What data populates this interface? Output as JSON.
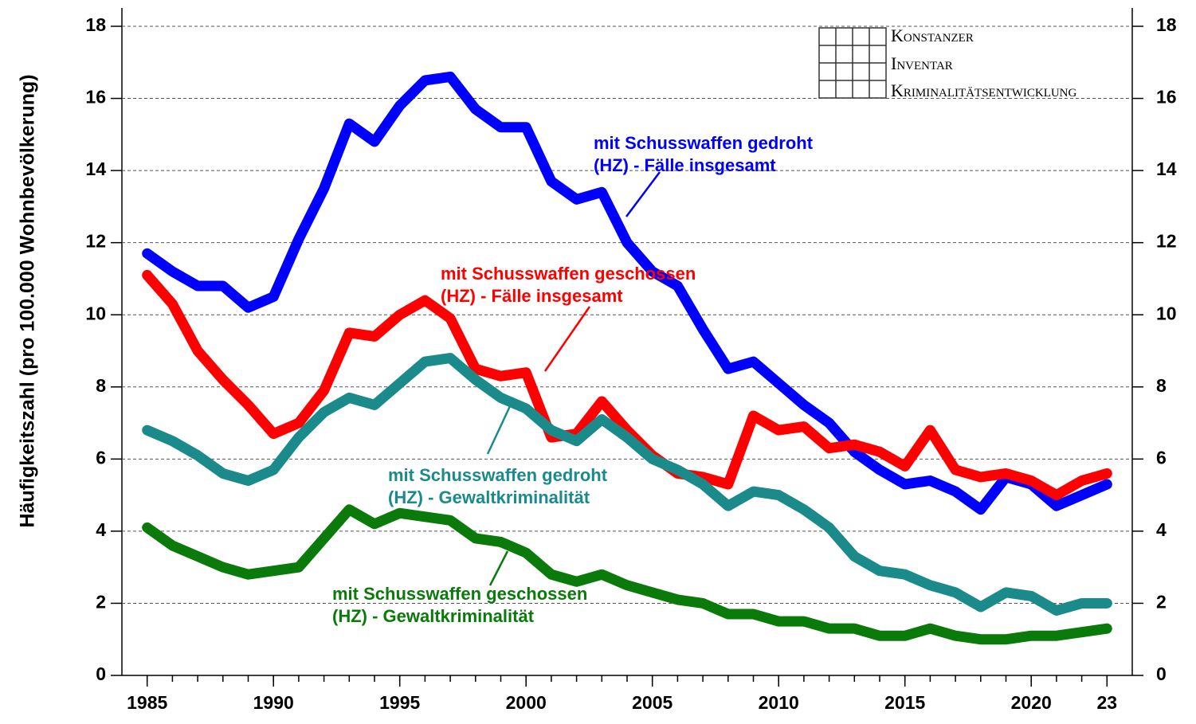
{
  "chart_data": {
    "type": "line",
    "y_label": "Häufigkeitszahl (pro 100.000 Wohnbevölkerung)",
    "logo": [
      "Konstanzer",
      "Inventar",
      "Kriminalitätsentwicklung"
    ],
    "x": [
      1985,
      1986,
      1987,
      1988,
      1989,
      1990,
      1991,
      1992,
      1993,
      1994,
      1995,
      1996,
      1997,
      1998,
      1999,
      2000,
      2001,
      2002,
      2003,
      2004,
      2005,
      2006,
      2007,
      2008,
      2009,
      2010,
      2011,
      2012,
      2013,
      2014,
      2015,
      2016,
      2017,
      2018,
      2019,
      2020,
      2021,
      2022,
      2023
    ],
    "xlim": [
      1984,
      2024
    ],
    "xticks": [
      1985,
      1990,
      1995,
      2000,
      2005,
      2010,
      2015,
      2020,
      {
        "value": 2023,
        "label": "23"
      }
    ],
    "ylim": [
      0,
      18
    ],
    "yticks": [
      0,
      2,
      4,
      6,
      8,
      10,
      12,
      14,
      16,
      18
    ],
    "y2lim": [
      0,
      18
    ],
    "y2ticks": [
      0,
      2,
      4,
      6,
      8,
      10,
      12,
      14,
      16,
      18
    ],
    "grid": true,
    "series": [
      {
        "label_lines": [
          "mit Schusswaffen gedroht",
          "(HZ) - Fälle insgesamt"
        ],
        "color": "#0000ff",
        "values": [
          11.7,
          11.2,
          10.8,
          10.8,
          10.2,
          10.5,
          12.1,
          13.5,
          15.3,
          14.8,
          15.8,
          16.5,
          16.6,
          15.7,
          15.2,
          15.2,
          13.7,
          13.2,
          13.4,
          12.0,
          11.2,
          10.8,
          9.6,
          8.5,
          8.7,
          8.1,
          7.5,
          7.0,
          6.2,
          5.7,
          5.3,
          5.4,
          5.1,
          4.6,
          5.5,
          5.3,
          4.7,
          5.0,
          5.3
        ]
      },
      {
        "label_lines": [
          "mit Schusswaffen geschossen",
          "(HZ) - Fälle insgesamt"
        ],
        "color": "#ff0000",
        "values": [
          11.1,
          10.3,
          9.0,
          8.2,
          7.5,
          6.7,
          7.0,
          7.9,
          9.5,
          9.4,
          10.0,
          10.4,
          9.9,
          8.5,
          8.3,
          8.4,
          6.6,
          6.7,
          7.6,
          6.8,
          6.1,
          5.6,
          5.5,
          5.3,
          7.2,
          6.8,
          6.9,
          6.3,
          6.4,
          6.2,
          5.8,
          6.8,
          5.7,
          5.5,
          5.6,
          5.4,
          5.0,
          5.4,
          5.6
        ]
      },
      {
        "label_lines": [
          "mit Schusswaffen gedroht",
          "(HZ) - Gewaltkriminalität"
        ],
        "color": "#1a8a8a",
        "values": [
          6.8,
          6.5,
          6.1,
          5.6,
          5.4,
          5.7,
          6.6,
          7.3,
          7.7,
          7.5,
          8.1,
          8.7,
          8.8,
          8.2,
          7.7,
          7.4,
          6.8,
          6.5,
          7.1,
          6.6,
          6.0,
          5.7,
          5.3,
          4.7,
          5.1,
          5.0,
          4.6,
          4.1,
          3.3,
          2.9,
          2.8,
          2.5,
          2.3,
          1.9,
          2.3,
          2.2,
          1.8,
          2.0,
          2.0
        ]
      },
      {
        "label_lines": [
          "mit Schusswaffen geschossen",
          "(HZ) - Gewaltkriminalität"
        ],
        "color": "#0a7a0a",
        "values": [
          4.1,
          3.6,
          3.3,
          3.0,
          2.8,
          2.9,
          3.0,
          3.8,
          4.6,
          4.2,
          4.5,
          4.4,
          4.3,
          3.8,
          3.7,
          3.4,
          2.8,
          2.6,
          2.8,
          2.5,
          2.3,
          2.1,
          2.0,
          1.7,
          1.7,
          1.5,
          1.5,
          1.3,
          1.3,
          1.1,
          1.1,
          1.3,
          1.1,
          1.0,
          1.0,
          1.1,
          1.1,
          1.2,
          1.3
        ]
      }
    ]
  }
}
